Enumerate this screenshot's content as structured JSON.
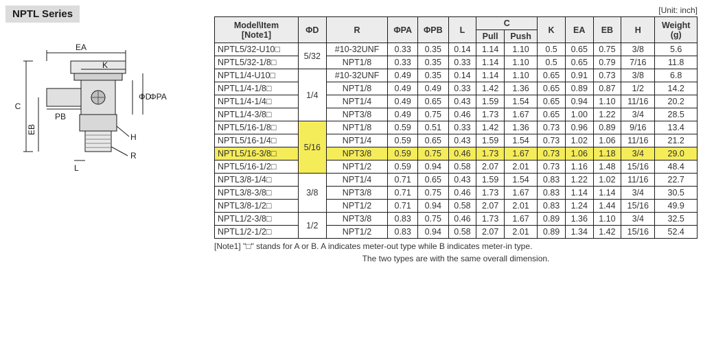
{
  "series_title": "NPTL Series",
  "unit_label": "[Unit: inch]",
  "header": {
    "model_item": "Model\\Item",
    "note1": "[Note1]",
    "phi_d": "ΦD",
    "r": "R",
    "phi_pa": "ΦPA",
    "phi_pb": "ΦPB",
    "l": "L",
    "c": "C",
    "c_pull": "Pull",
    "c_push": "Push",
    "k": "K",
    "ea": "EA",
    "eb": "EB",
    "h": "H",
    "weight": "Weight",
    "weight_unit": "(g)"
  },
  "phi_d_groups": [
    {
      "value": "5/32",
      "rows": 2
    },
    {
      "value": "1/4",
      "rows": 4
    },
    {
      "value": "5/16",
      "rows": 4,
      "highlight": true
    },
    {
      "value": "3/8",
      "rows": 3
    },
    {
      "value": "1/2",
      "rows": 2
    }
  ],
  "rows": [
    {
      "model": "NPTL5/32-U10□",
      "r": "#10-32UNF",
      "pa": "0.33",
      "pb": "0.35",
      "l": "0.14",
      "pull": "1.14",
      "push": "1.10",
      "k": "0.5",
      "ea": "0.65",
      "eb": "0.75",
      "h": "3/8",
      "w": "5.6"
    },
    {
      "model": "NPTL5/32-1/8□",
      "r": "NPT1/8",
      "pa": "0.33",
      "pb": "0.35",
      "l": "0.33",
      "pull": "1.14",
      "push": "1.10",
      "k": "0.5",
      "ea": "0.65",
      "eb": "0.79",
      "h": "7/16",
      "w": "11.8"
    },
    {
      "model": "NPTL1/4-U10□",
      "r": "#10-32UNF",
      "pa": "0.49",
      "pb": "0.35",
      "l": "0.14",
      "pull": "1.14",
      "push": "1.10",
      "k": "0.65",
      "ea": "0.91",
      "eb": "0.73",
      "h": "3/8",
      "w": "6.8"
    },
    {
      "model": "NPTL1/4-1/8□",
      "r": "NPT1/8",
      "pa": "0.49",
      "pb": "0.49",
      "l": "0.33",
      "pull": "1.42",
      "push": "1.36",
      "k": "0.65",
      "ea": "0.89",
      "eb": "0.87",
      "h": "1/2",
      "w": "14.2"
    },
    {
      "model": "NPTL1/4-1/4□",
      "r": "NPT1/4",
      "pa": "0.49",
      "pb": "0.65",
      "l": "0.43",
      "pull": "1.59",
      "push": "1.54",
      "k": "0.65",
      "ea": "0.94",
      "eb": "1.10",
      "h": "11/16",
      "w": "20.2"
    },
    {
      "model": "NPTL1/4-3/8□",
      "r": "NPT3/8",
      "pa": "0.49",
      "pb": "0.75",
      "l": "0.46",
      "pull": "1.73",
      "push": "1.67",
      "k": "0.65",
      "ea": "1.00",
      "eb": "1.22",
      "h": "3/4",
      "w": "28.5"
    },
    {
      "model": "NPTL5/16-1/8□",
      "r": "NPT1/8",
      "pa": "0.59",
      "pb": "0.51",
      "l": "0.33",
      "pull": "1.42",
      "push": "1.36",
      "k": "0.73",
      "ea": "0.96",
      "eb": "0.89",
      "h": "9/16",
      "w": "13.4"
    },
    {
      "model": "NPTL5/16-1/4□",
      "r": "NPT1/4",
      "pa": "0.59",
      "pb": "0.65",
      "l": "0.43",
      "pull": "1.59",
      "push": "1.54",
      "k": "0.73",
      "ea": "1.02",
      "eb": "1.06",
      "h": "11/16",
      "w": "21.2"
    },
    {
      "model": "NPTL5/16-3/8□",
      "r": "NPT3/8",
      "pa": "0.59",
      "pb": "0.75",
      "l": "0.46",
      "pull": "1.73",
      "push": "1.67",
      "k": "0.73",
      "ea": "1.06",
      "eb": "1.18",
      "h": "3/4",
      "w": "29.0",
      "highlight": true
    },
    {
      "model": "NPTL5/16-1/2□",
      "r": "NPT1/2",
      "pa": "0.59",
      "pb": "0.94",
      "l": "0.58",
      "pull": "2.07",
      "push": "2.01",
      "k": "0.73",
      "ea": "1.16",
      "eb": "1.48",
      "h": "15/16",
      "w": "48.4"
    },
    {
      "model": "NPTL3/8-1/4□",
      "r": "NPT1/4",
      "pa": "0.71",
      "pb": "0.65",
      "l": "0.43",
      "pull": "1.59",
      "push": "1.54",
      "k": "0.83",
      "ea": "1.22",
      "eb": "1.02",
      "h": "11/16",
      "w": "22.7"
    },
    {
      "model": "NPTL3/8-3/8□",
      "r": "NPT3/8",
      "pa": "0.71",
      "pb": "0.75",
      "l": "0.46",
      "pull": "1.73",
      "push": "1.67",
      "k": "0.83",
      "ea": "1.14",
      "eb": "1.14",
      "h": "3/4",
      "w": "30.5"
    },
    {
      "model": "NPTL3/8-1/2□",
      "r": "NPT1/2",
      "pa": "0.71",
      "pb": "0.94",
      "l": "0.58",
      "pull": "2.07",
      "push": "2.01",
      "k": "0.83",
      "ea": "1.24",
      "eb": "1.44",
      "h": "15/16",
      "w": "49.9"
    },
    {
      "model": "NPTL1/2-3/8□",
      "r": "NPT3/8",
      "pa": "0.83",
      "pb": "0.75",
      "l": "0.46",
      "pull": "1.73",
      "push": "1.67",
      "k": "0.89",
      "ea": "1.36",
      "eb": "1.10",
      "h": "3/4",
      "w": "32.5"
    },
    {
      "model": "NPTL1/2-1/2□",
      "r": "NPT1/2",
      "pa": "0.83",
      "pb": "0.94",
      "l": "0.58",
      "pull": "2.07",
      "push": "2.01",
      "k": "0.89",
      "ea": "1.34",
      "eb": "1.42",
      "h": "15/16",
      "w": "52.4"
    }
  ],
  "footnote1": "[Note1] \"□\" stands for A or B. A indicates meter-out type while B indicates meter-in type.",
  "footnote2": "The two types are with the same overall dimension.",
  "diagram_labels": {
    "ea": "EA",
    "k": "K",
    "phi_d": "ΦD",
    "phi_pa": "ΦPA",
    "phi_pb": "ΦPB",
    "c": "C",
    "eb": "EB",
    "l": "L",
    "h": "H",
    "r": "R",
    "pb": "PB"
  },
  "colors": {
    "highlight": "#f5ec5a",
    "header_bg": "#ececec",
    "border": "#1a1a1a",
    "text": "#333333"
  }
}
